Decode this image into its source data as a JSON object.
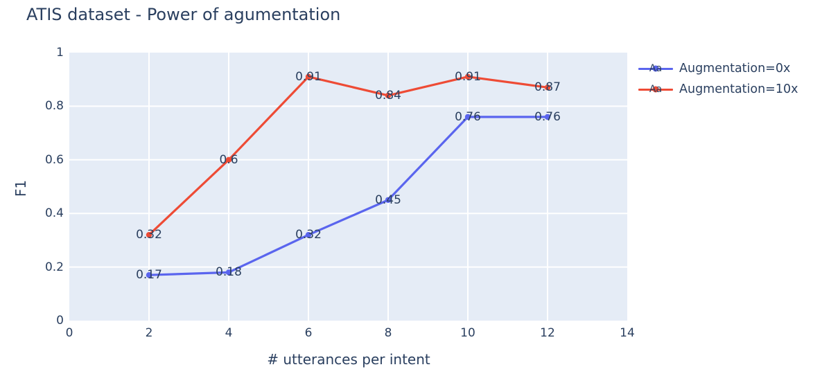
{
  "title": "ATIS dataset - Power of agumentation",
  "legend": {
    "sample_text": "Aa"
  },
  "chart_data": {
    "type": "line",
    "title": "ATIS dataset - Power of agumentation",
    "xlabel": "# utterances per intent",
    "ylabel": "F1",
    "x": [
      2,
      4,
      6,
      8,
      10,
      12
    ],
    "series": [
      {
        "name": "Augmentation=0x",
        "color": "#5A65EE",
        "values": [
          0.17,
          0.18,
          0.32,
          0.45,
          0.76,
          0.76
        ],
        "point_labels": [
          "0.17",
          "0.18",
          "0.32",
          "0.45",
          "0.76",
          "0.76"
        ]
      },
      {
        "name": "Augmentation=10x",
        "color": "#EE4B35",
        "values": [
          0.32,
          0.6,
          0.91,
          0.84,
          0.91,
          0.87
        ],
        "point_labels": [
          "0.32",
          "0.6",
          "0.91",
          "0.84",
          "0.91",
          "0.87"
        ]
      }
    ],
    "xlim": [
      0,
      14
    ],
    "ylim": [
      0,
      1
    ],
    "xticks": [
      0,
      2,
      4,
      6,
      8,
      10,
      12,
      14
    ],
    "xtick_labels": [
      "0",
      "2",
      "4",
      "6",
      "8",
      "10",
      "12",
      "14"
    ],
    "yticks": [
      0,
      0.2,
      0.4,
      0.6,
      0.8,
      1
    ],
    "ytick_labels": [
      "0",
      "0.2",
      "0.4",
      "0.6",
      "0.8",
      "1"
    ],
    "grid": true,
    "grid_color": "#ffffff",
    "plot_background": "#e5ecf6",
    "text_color": "#2a3f5f",
    "legend_position": "right"
  }
}
